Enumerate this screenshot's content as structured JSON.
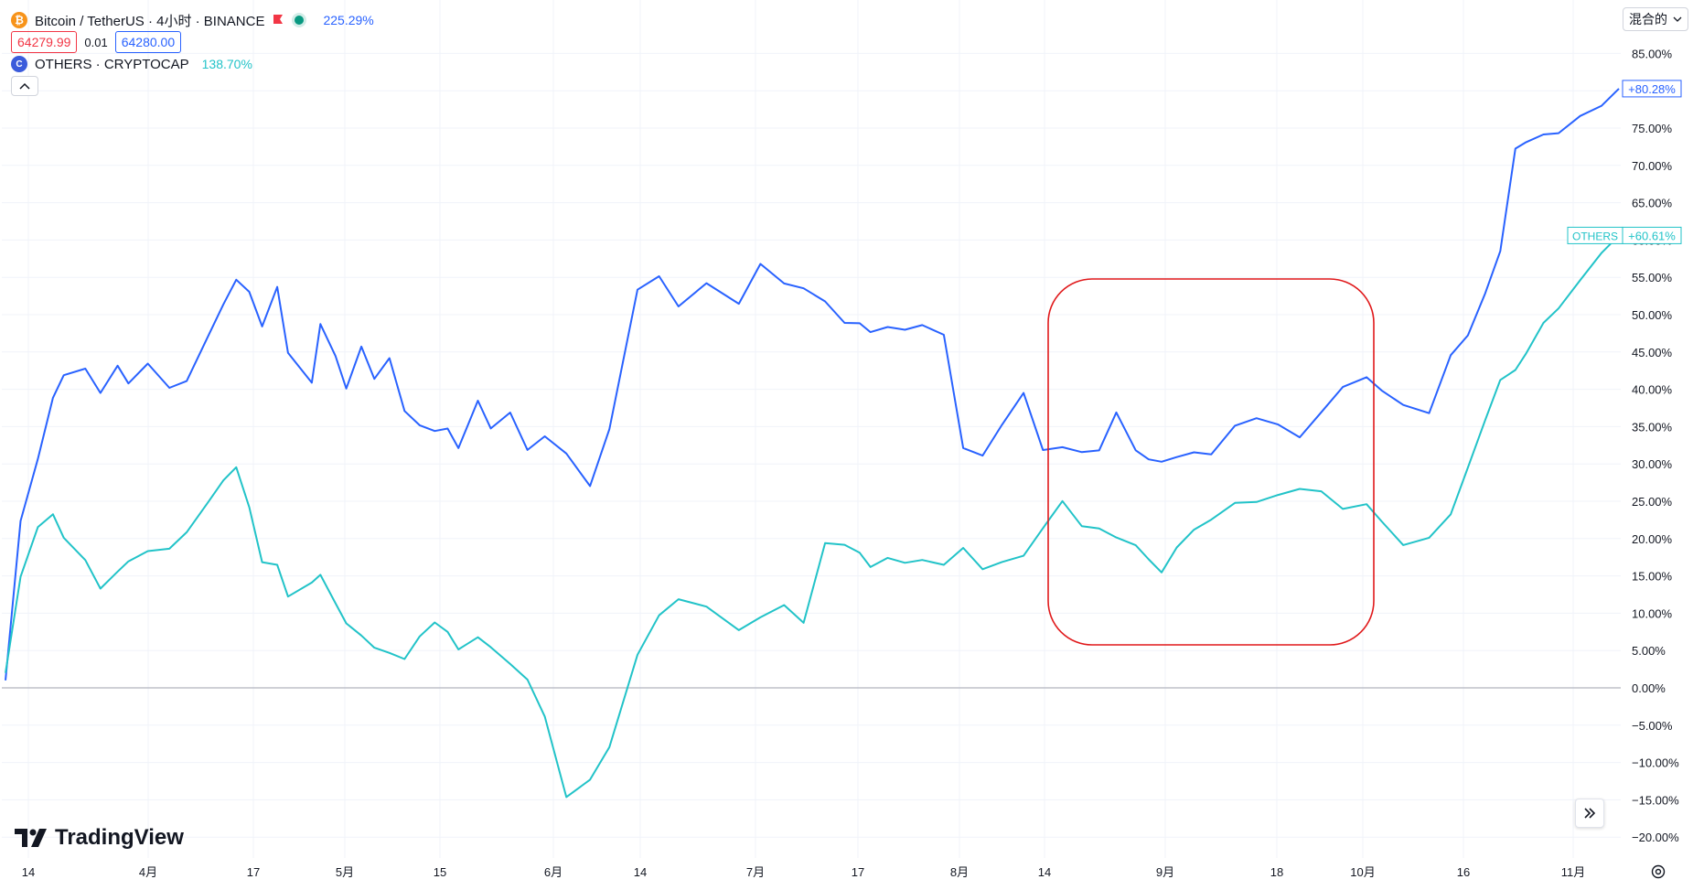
{
  "legend": {
    "main": {
      "symbol": "Bitcoin / TetherUS · 4小时 · BINANCE",
      "change": "225.29%",
      "icon": "bitcoin-icon"
    },
    "bid": "64279.99",
    "spread": "0.01",
    "ask": "64280.00",
    "compare": {
      "symbol": "OTHERS · CRYPTOCAP",
      "change": "138.70%",
      "icon": "cryptocap-icon"
    }
  },
  "scale_mode": "混合的",
  "logo_text": "TradingView",
  "colors": {
    "btc": "#2962ff",
    "others": "#22c3c8",
    "highlight": "#e0191b",
    "zero_line": "#b2b5be",
    "grid": "#f0f3fa"
  },
  "chart_data": {
    "type": "line",
    "xlabel": "",
    "ylabel": "",
    "y_unit": "%",
    "ylim": [
      -22,
      88
    ],
    "yticks": [
      "85.00%",
      "80.00%",
      "75.00%",
      "70.00%",
      "65.00%",
      "60.00%",
      "55.00%",
      "50.00%",
      "45.00%",
      "40.00%",
      "35.00%",
      "30.00%",
      "25.00%",
      "20.00%",
      "15.00%",
      "10.00%",
      "5.00%",
      "0.00%",
      "−5.00%",
      "−10.00%",
      "−15.00%",
      "−20.00%"
    ],
    "xticks": [
      "14",
      "4月",
      "17",
      "5月",
      "15",
      "6月",
      "14",
      "7月",
      "17",
      "8月",
      "14",
      "9月",
      "18",
      "10月",
      "16",
      "11月"
    ],
    "x_positions": [
      0,
      14,
      30,
      44,
      54,
      74,
      88,
      104,
      114,
      132,
      152,
      168,
      188,
      202,
      214,
      226,
      238,
      252,
      262,
      284,
      292,
      306,
      316,
      330,
      342,
      356,
      370,
      384,
      398,
      410,
      420,
      438,
      450,
      468,
      484,
      500,
      520,
      542,
      560,
      586,
      606,
      624,
      650,
      680,
      700,
      722,
      740,
      760,
      778,
      792,
      802,
      818,
      834,
      850,
      870,
      888,
      906,
      924,
      944,
      962,
      980,
      998,
      1014,
      1030,
      1048,
      1060,
      1072,
      1086,
      1102,
      1118,
      1140,
      1160,
      1180,
      1200,
      1220,
      1240,
      1262,
      1276,
      1296,
      1320,
      1340,
      1356,
      1372,
      1386,
      1400,
      1410,
      1426,
      1440,
      1460,
      1480,
      1496
    ],
    "series": [
      {
        "name": "Bitcoin / TetherUS",
        "values": [
          1,
          22,
          30,
          38,
          41,
          42,
          39,
          43,
          41,
          44,
          41,
          42,
          48,
          52,
          55,
          53,
          48,
          53,
          44,
          40,
          48,
          44,
          40,
          46,
          42,
          45,
          38,
          36,
          35,
          35,
          32,
          38,
          34,
          36,
          31,
          33,
          31,
          27,
          35,
          54,
          56,
          52,
          55,
          52,
          57,
          54,
          53,
          51,
          48,
          48,
          47,
          48,
          48,
          49,
          48,
          33,
          32,
          36,
          40,
          32,
          32,
          31,
          31,
          36,
          31,
          30,
          30,
          31,
          32,
          32,
          36,
          37,
          36,
          34,
          37,
          40,
          41,
          39,
          37,
          36,
          44,
          47,
          53,
          59,
          73,
          74,
          75,
          75,
          77,
          78,
          80.28
        ]
      },
      {
        "name": "OTHERS",
        "values": [
          2,
          15,
          22,
          24,
          21,
          18,
          14,
          16,
          17,
          18,
          18,
          20,
          24,
          27,
          29,
          24,
          17,
          17,
          13,
          15,
          16,
          12,
          9,
          7,
          5,
          4,
          3,
          6,
          8,
          7,
          5,
          7,
          6,
          4,
          2,
          -3,
          -14,
          -12,
          -8,
          4,
          9,
          11,
          10,
          7,
          9,
          11,
          9,
          20,
          20,
          19,
          17,
          18,
          17,
          17,
          16,
          18,
          15,
          16,
          17,
          21,
          25,
          22,
          22,
          21,
          20,
          18,
          16,
          19,
          21,
          22,
          24,
          24,
          25,
          26,
          26,
          24,
          25,
          23,
          20,
          21,
          24,
          30,
          36,
          41,
          42,
          44,
          48,
          50,
          54,
          58,
          60.61
        ]
      }
    ],
    "last_labels": {
      "btc": "+80.28%",
      "others_name": "OTHERS",
      "others": "+60.61%"
    },
    "grid": true,
    "legend_placement": "top-left"
  }
}
